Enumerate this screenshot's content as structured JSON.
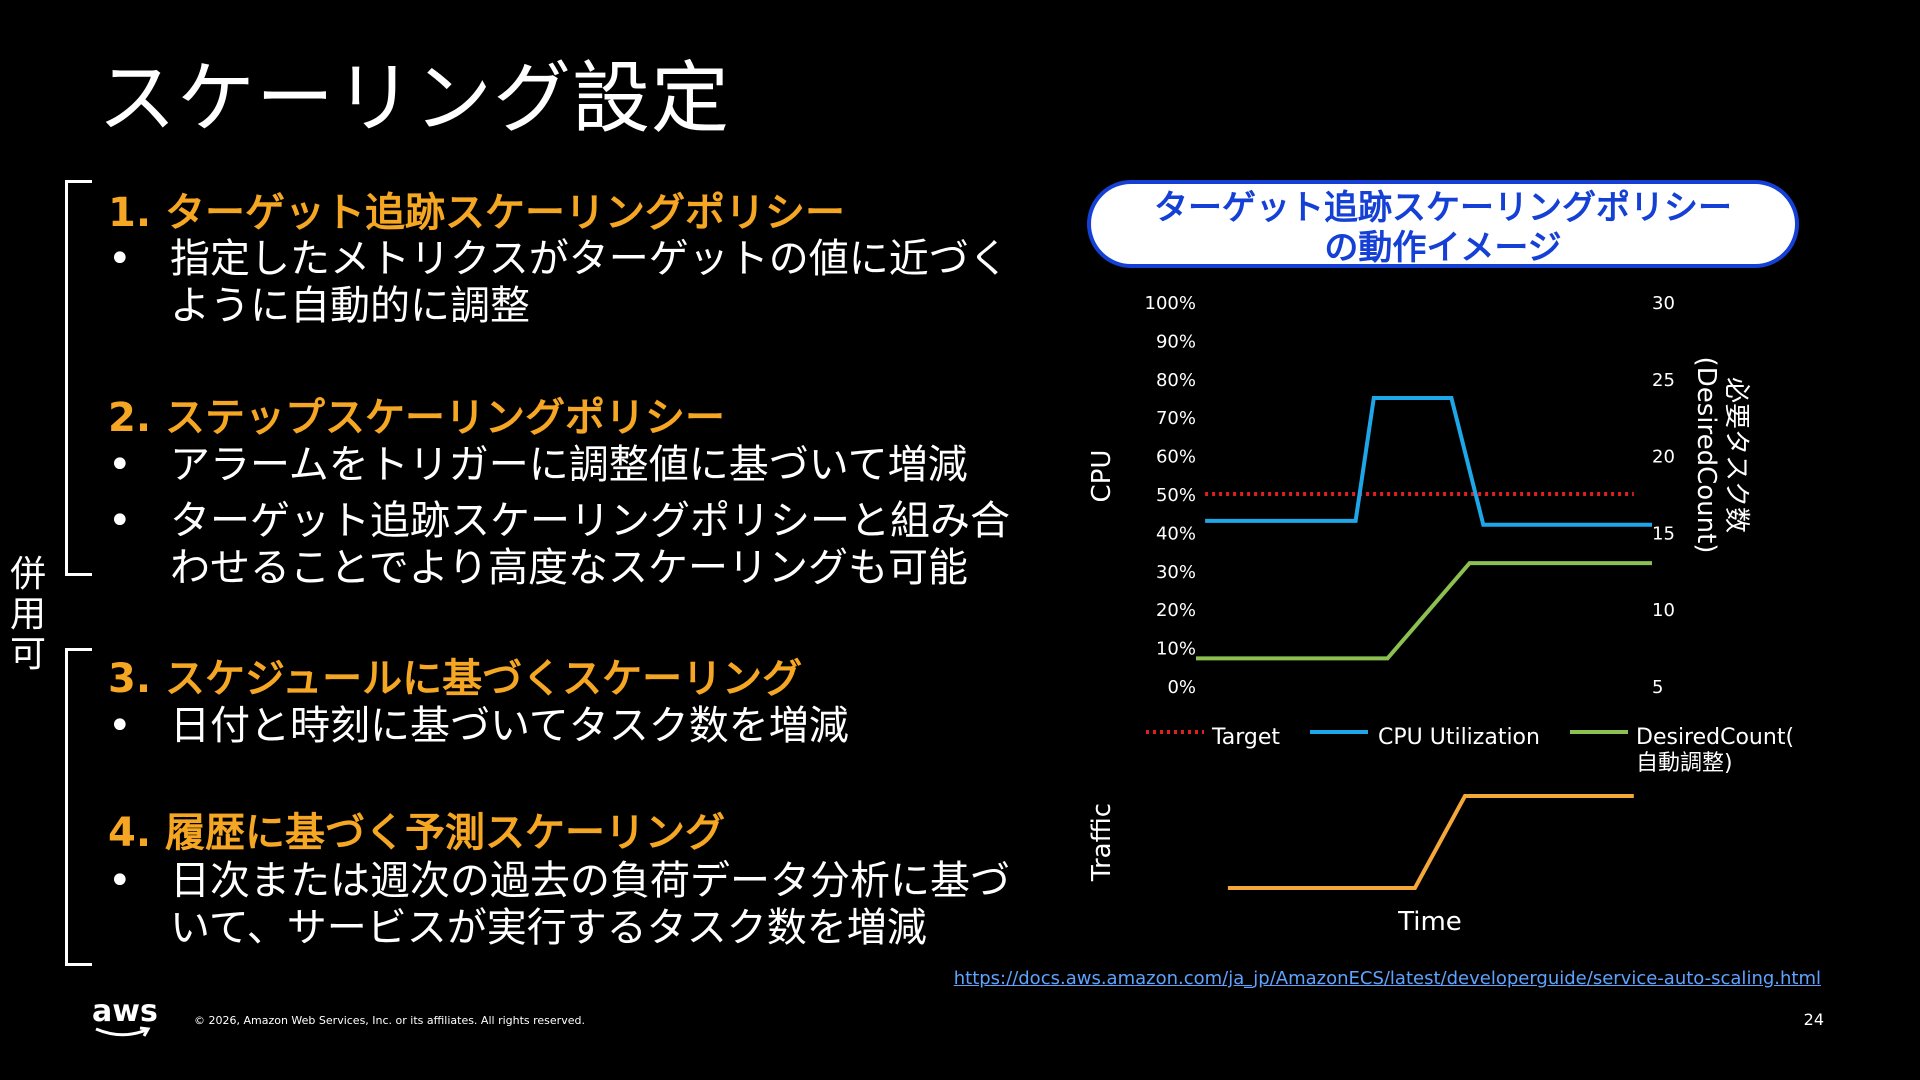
{
  "slide": {
    "title": "スケーリング設定",
    "side_label": "併\n用\n可",
    "sections": [
      {
        "heading": "1. ターゲット追跡スケーリングポリシー",
        "bullets": [
          "指定したメトリクスがターゲットの値に近づく\nように自動的に調整"
        ]
      },
      {
        "heading": "2. ステップスケーリングポリシー",
        "bullets": [
          "アラームをトリガーに調整値に基づいて増減",
          "ターゲット追跡スケーリングポリシーと組み合\nわせることでより高度なスケーリングも可能"
        ]
      },
      {
        "heading": "3. スケジュールに基づくスケーリング",
        "bullets": [
          "日付と時刻に基づいてタスク数を増減"
        ]
      },
      {
        "heading": "4. 履歴に基づく予測スケーリング",
        "bullets": [
          "日次または週次の過去の負荷データ分析に基づ\nいて、サービスが実行するタスク数を増減"
        ]
      }
    ],
    "bullet_symbol": "•"
  },
  "diagram": {
    "title": "ターゲット追跡スケーリングポリシー\nの動作イメージ",
    "xlabel": "Time",
    "traffic_label": "Traffic"
  },
  "chart_data": {
    "type": "line",
    "ylabel": "CPU",
    "y2label": "必要タスク数\n(DesiredCount)",
    "y_ticks": [
      "0%",
      "10%",
      "20%",
      "30%",
      "40%",
      "50%",
      "60%",
      "70%",
      "80%",
      "90%",
      "100%"
    ],
    "y2_ticks": [
      "5",
      "10",
      "15",
      "20",
      "25",
      "30"
    ],
    "ylim": [
      0,
      100
    ],
    "y2lim": [
      5,
      30
    ],
    "x": [
      0,
      10,
      20,
      30,
      40,
      50,
      60,
      70,
      80,
      90,
      100
    ],
    "series": [
      {
        "name": "Target",
        "axis": "left",
        "color": "#e02020",
        "style": "dotted",
        "x": [
          2,
          96
        ],
        "y": [
          50,
          50
        ]
      },
      {
        "name": "CPU Utilization",
        "axis": "left",
        "color": "#1ea7e8",
        "style": "solid",
        "x": [
          2,
          35,
          39,
          56,
          63,
          100
        ],
        "y": [
          43,
          43,
          75,
          75,
          42,
          42
        ]
      },
      {
        "name": "DesiredCount(\n自動調整)",
        "axis": "right",
        "color": "#8cc152",
        "style": "solid",
        "x": [
          0,
          42,
          60,
          100
        ],
        "y": [
          6.8,
          6.8,
          13,
          13
        ]
      },
      {
        "axis": "traffic",
        "color": "#f5a83a",
        "style": "solid",
        "x": [
          7,
          48,
          59,
          96
        ],
        "y": [
          0,
          0,
          1,
          1
        ]
      }
    ],
    "grid": false,
    "legend": "bottom"
  },
  "footer": {
    "logo": "aws",
    "copyright": "© 2026, Amazon Web Services, Inc. or its affiliates. All rights reserved.",
    "page_number": "24",
    "link": "https://docs.aws.amazon.com/ja_jp/AmazonECS/latest/developerguide/service-auto-scaling.html"
  }
}
